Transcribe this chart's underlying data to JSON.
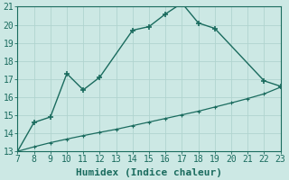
{
  "xlabel": "Humidex (Indice chaleur)",
  "bg_color": "#cce8e4",
  "grid_color": "#b0d4cf",
  "line_color": "#1a6b5e",
  "xlim": [
    7,
    23
  ],
  "ylim": [
    13,
    21
  ],
  "xticks": [
    7,
    8,
    9,
    10,
    11,
    12,
    13,
    14,
    15,
    16,
    17,
    18,
    19,
    20,
    21,
    22,
    23
  ],
  "yticks": [
    13,
    14,
    15,
    16,
    17,
    18,
    19,
    20,
    21
  ],
  "curve1_x": [
    7,
    8,
    9,
    10,
    11,
    12,
    14,
    15,
    16,
    17,
    18,
    19,
    22,
    23
  ],
  "curve1_y": [
    13.0,
    14.6,
    14.9,
    17.3,
    16.4,
    17.1,
    19.7,
    19.9,
    20.6,
    21.2,
    20.1,
    19.8,
    16.9,
    16.6
  ],
  "curve2_x": [
    7,
    8,
    9,
    10,
    11,
    12,
    13,
    14,
    15,
    16,
    17,
    18,
    19,
    20,
    21,
    22,
    23
  ],
  "curve2_y": [
    13.0,
    13.25,
    13.48,
    13.68,
    13.87,
    14.05,
    14.22,
    14.42,
    14.62,
    14.82,
    15.02,
    15.22,
    15.45,
    15.68,
    15.92,
    16.18,
    16.55
  ],
  "font_color": "#1a6b5e",
  "font_size_ticks": 7,
  "font_size_label": 8
}
